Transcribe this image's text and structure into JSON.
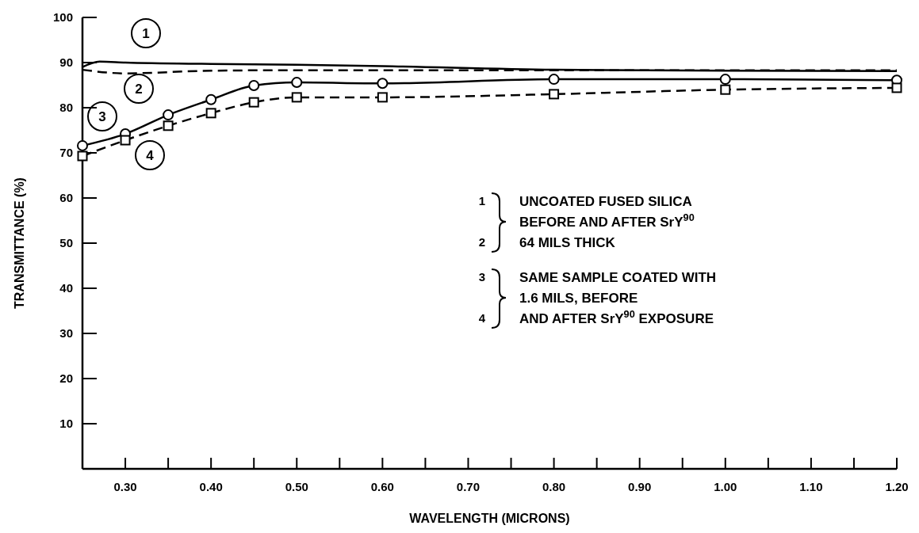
{
  "chart_data": {
    "type": "line",
    "xlabel": "WAVELENGTH (MICRONS)",
    "ylabel": "TRANSMITTANCE (%)",
    "xlim": [
      0.25,
      1.2
    ],
    "ylim": [
      0,
      100
    ],
    "xticks": [
      {
        "value": 0.3,
        "label": "0.30"
      },
      {
        "value": 0.35,
        "label": null
      },
      {
        "value": 0.4,
        "label": "0.40"
      },
      {
        "value": 0.45,
        "label": null
      },
      {
        "value": 0.5,
        "label": "0.50"
      },
      {
        "value": 0.55,
        "label": null
      },
      {
        "value": 0.6,
        "label": "0.60"
      },
      {
        "value": 0.65,
        "label": null
      },
      {
        "value": 0.7,
        "label": "0.70"
      },
      {
        "value": 0.75,
        "label": null
      },
      {
        "value": 0.8,
        "label": "0.80"
      },
      {
        "value": 0.85,
        "label": null
      },
      {
        "value": 0.9,
        "label": "0.90"
      },
      {
        "value": 0.95,
        "label": null
      },
      {
        "value": 1.0,
        "label": "1.00"
      },
      {
        "value": 1.05,
        "label": null
      },
      {
        "value": 1.1,
        "label": "1.10"
      },
      {
        "value": 1.15,
        "label": null
      },
      {
        "value": 1.2,
        "label": "1.20"
      }
    ],
    "yticks": [
      10,
      20,
      30,
      40,
      50,
      60,
      70,
      80,
      90,
      100
    ],
    "series": [
      {
        "color": "#000000",
        "line_style": "solid",
        "marker": "none",
        "x": [
          0.25,
          0.27,
          0.3,
          0.4,
          0.5,
          0.6,
          0.8,
          1.0,
          1.2
        ],
        "values": [
          89,
          90.2,
          90,
          89.7,
          89.5,
          89.2,
          88.4,
          88.2,
          88.1
        ]
      },
      {
        "color": "#000000",
        "line_style": "dashed",
        "marker": "none",
        "x": [
          0.25,
          0.3,
          0.4,
          0.5,
          0.6,
          0.8,
          1.0,
          1.2
        ],
        "values": [
          88.4,
          87.6,
          88.2,
          88.3,
          88.3,
          88.3,
          88.3,
          88.3
        ]
      },
      {
        "color": "#000000",
        "line_style": "solid",
        "marker": "circle",
        "x": [
          0.25,
          0.3,
          0.35,
          0.4,
          0.45,
          0.5,
          0.6,
          0.8,
          1.0,
          1.2
        ],
        "values": [
          71.6,
          74.2,
          78.4,
          81.8,
          84.9,
          85.6,
          85.4,
          86.3,
          86.3,
          86.1
        ]
      },
      {
        "color": "#000000",
        "line_style": "dashed",
        "marker": "square",
        "x": [
          0.25,
          0.3,
          0.35,
          0.4,
          0.45,
          0.5,
          0.6,
          0.8,
          1.0,
          1.2
        ],
        "values": [
          69.3,
          72.8,
          76,
          78.8,
          81.2,
          82.3,
          82.3,
          83,
          84,
          84.4
        ]
      }
    ],
    "annotations": [
      "1",
      "2",
      "3",
      "4",
      "1",
      "2",
      "UNCOATED FUSED SILICA",
      "BEFORE AND AFTER SrY$^{90}$",
      "64 MILS THICK",
      "3",
      "4",
      "SAME SAMPLE COATED WITH",
      "1.6 MILS, BEFORE",
      "AND AFTER SrY$^{90}$ EXPOSURE"
    ]
  }
}
